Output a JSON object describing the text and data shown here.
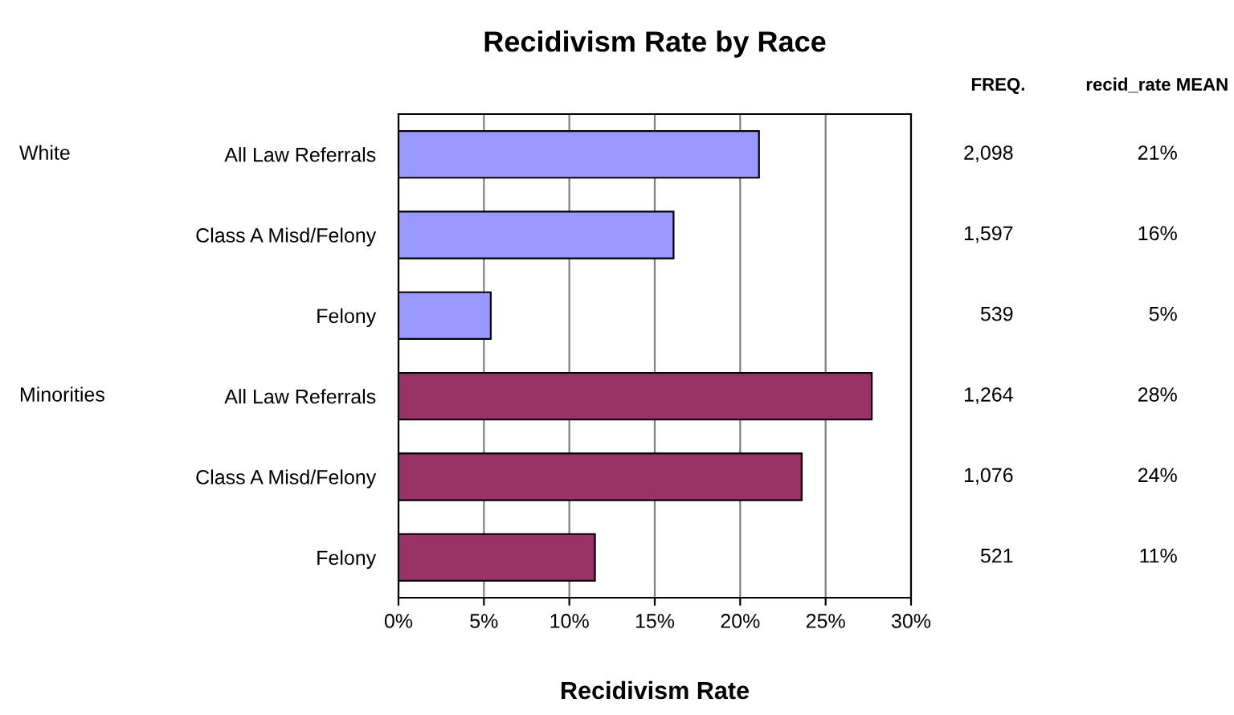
{
  "chart_data": {
    "type": "bar",
    "orientation": "horizontal",
    "title": "Recidivism Rate by Race",
    "xlabel": "Recidivism Rate",
    "categories": [
      "All Law Referrals",
      "Class A Misd/Felony",
      "Felony",
      "All Law Referrals",
      "Class A Misd/Felony",
      "Felony"
    ],
    "values": [
      21.1,
      16.1,
      5.4,
      27.7,
      23.6,
      11.5
    ],
    "colors": [
      "#9999ff",
      "#9999ff",
      "#9999ff",
      "#993366",
      "#993366",
      "#993366"
    ],
    "value_labels": [
      "21%",
      "16%",
      "5%",
      "28%",
      "24%",
      "11%"
    ],
    "annotations": [
      "White",
      "Minorities",
      "FREQ.",
      "recid_rate MEAN",
      "2,098",
      "1,597",
      "539",
      "1,264",
      "1,076",
      "521"
    ],
    "xlim": [
      0,
      30
    ],
    "xticks": [
      {
        "value": 0,
        "label": "0%"
      },
      {
        "value": 5,
        "label": "5%"
      },
      {
        "value": 10,
        "label": "10%"
      },
      {
        "value": 15,
        "label": "15%"
      },
      {
        "value": 20,
        "label": "20%"
      },
      {
        "value": 25,
        "label": "25%"
      },
      {
        "value": 30,
        "label": "30%"
      }
    ],
    "grid": "x"
  }
}
